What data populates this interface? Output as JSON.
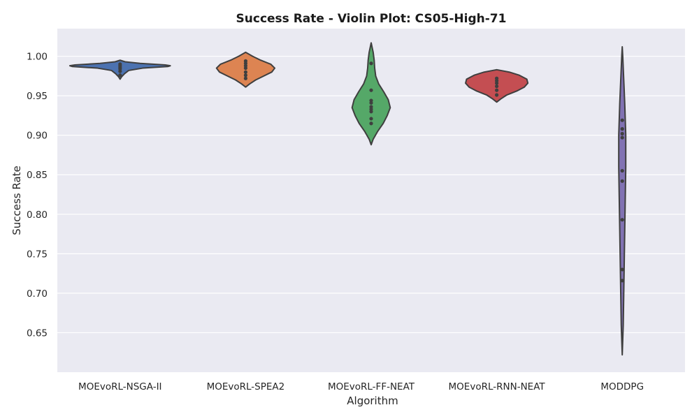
{
  "chart_data": {
    "type": "violin",
    "title": "Success Rate - Violin Plot: CS05-High-71",
    "xlabel": "Algorithm",
    "ylabel": "Success Rate",
    "ylim": [
      0.6,
      1.035
    ],
    "yticks": [
      "0.65",
      "0.70",
      "0.75",
      "0.80",
      "0.85",
      "0.90",
      "0.95",
      "1.00"
    ],
    "grid": true,
    "background": "#eaeaf2",
    "categories": [
      "MOEvoRL-NSGA-II",
      "MOEvoRL-SPEA2",
      "MOEvoRL-FF-NEAT",
      "MOEvoRL-RNN-NEAT",
      "MODDPG"
    ],
    "series": [
      {
        "color": "#4c72b0",
        "points": [
          0.976,
          0.981,
          0.984,
          0.986,
          0.988,
          0.99
        ],
        "violin": {
          "min": 0.971,
          "max": 0.995,
          "profile": [
            [
              0.971,
              0.0
            ],
            [
              0.974,
              0.03
            ],
            [
              0.978,
              0.09
            ],
            [
              0.982,
              0.17
            ],
            [
              0.985,
              0.45
            ],
            [
              0.987,
              0.95
            ],
            [
              0.988,
              1.0
            ],
            [
              0.989,
              0.9
            ],
            [
              0.991,
              0.4
            ],
            [
              0.993,
              0.1
            ],
            [
              0.995,
              0.0
            ]
          ]
        }
      },
      {
        "color": "#dd8452",
        "points": [
          0.972,
          0.976,
          0.98,
          0.985,
          0.988,
          0.991,
          0.994
        ],
        "violin": {
          "min": 0.961,
          "max": 1.005,
          "profile": [
            [
              0.961,
              0.0
            ],
            [
              0.965,
              0.08
            ],
            [
              0.97,
              0.2
            ],
            [
              0.975,
              0.36
            ],
            [
              0.98,
              0.52
            ],
            [
              0.985,
              0.58
            ],
            [
              0.99,
              0.5
            ],
            [
              0.995,
              0.3
            ],
            [
              1.0,
              0.14
            ],
            [
              1.005,
              0.0
            ]
          ]
        }
      },
      {
        "color": "#55a868",
        "points": [
          0.915,
          0.921,
          0.93,
          0.933,
          0.936,
          0.941,
          0.944,
          0.957,
          0.991
        ],
        "violin": {
          "min": 0.888,
          "max": 1.017,
          "profile": [
            [
              0.888,
              0.0
            ],
            [
              0.895,
              0.04
            ],
            [
              0.905,
              0.13
            ],
            [
              0.915,
              0.24
            ],
            [
              0.925,
              0.32
            ],
            [
              0.935,
              0.38
            ],
            [
              0.945,
              0.34
            ],
            [
              0.955,
              0.25
            ],
            [
              0.965,
              0.15
            ],
            [
              0.975,
              0.09
            ],
            [
              0.985,
              0.07
            ],
            [
              0.995,
              0.06
            ],
            [
              1.005,
              0.04
            ],
            [
              1.017,
              0.0
            ]
          ]
        }
      },
      {
        "color": "#c44e52",
        "points": [
          0.951,
          0.957,
          0.962,
          0.966,
          0.969,
          0.972
        ],
        "violin": {
          "min": 0.942,
          "max": 0.983,
          "profile": [
            [
              0.942,
              0.0
            ],
            [
              0.946,
              0.08
            ],
            [
              0.951,
              0.2
            ],
            [
              0.956,
              0.4
            ],
            [
              0.961,
              0.55
            ],
            [
              0.966,
              0.62
            ],
            [
              0.971,
              0.6
            ],
            [
              0.976,
              0.45
            ],
            [
              0.98,
              0.25
            ],
            [
              0.983,
              0.0
            ]
          ]
        }
      },
      {
        "color": "#8172b3",
        "points": [
          0.716,
          0.73,
          0.793,
          0.842,
          0.855,
          0.897,
          0.902,
          0.908,
          0.919
        ],
        "violin": {
          "min": 0.622,
          "max": 1.012,
          "profile": [
            [
              0.622,
              0.0
            ],
            [
              0.66,
              0.02
            ],
            [
              0.7,
              0.03
            ],
            [
              0.74,
              0.04
            ],
            [
              0.78,
              0.05
            ],
            [
              0.82,
              0.06
            ],
            [
              0.86,
              0.07
            ],
            [
              0.9,
              0.07
            ],
            [
              0.94,
              0.05
            ],
            [
              0.97,
              0.03
            ],
            [
              1.0,
              0.01
            ],
            [
              1.012,
              0.0
            ]
          ]
        }
      }
    ]
  }
}
